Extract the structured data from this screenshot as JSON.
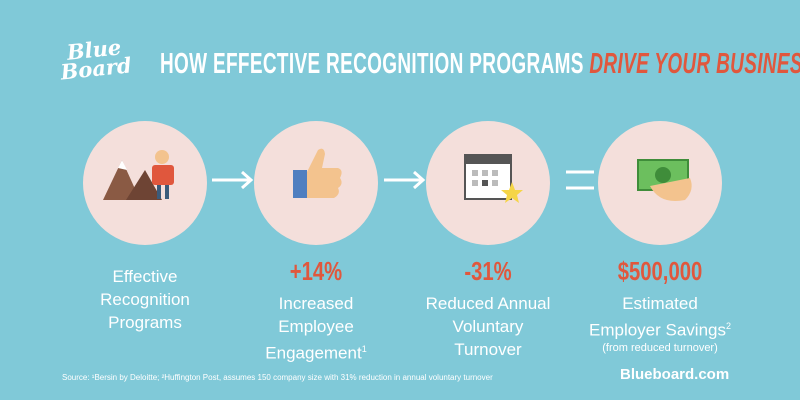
{
  "logo": [
    "Blue",
    "Board"
  ],
  "title": {
    "main": "HOW EFFECTIVE RECOGNITION PROGRAMS",
    "highlight": "DRIVE YOUR BUSINESS"
  },
  "steps": [
    {
      "label": [
        "Effective",
        "Recognition",
        "Programs"
      ]
    },
    {
      "stat": "+14%",
      "label": [
        "Increased",
        "Employee",
        "Engagement"
      ],
      "sup": "1"
    },
    {
      "stat": "-31%",
      "label": [
        "Reduced Annual",
        "Voluntary",
        "Turnover"
      ]
    },
    {
      "stat": "$500,000",
      "label": [
        "Estimated",
        "Employer Savings"
      ],
      "sup": "2",
      "note": "(from reduced turnover)"
    }
  ],
  "footer": {
    "source": "Source: ¹Bersin by Deloitte; ²Huffington Post, assumes 150 company size with 31% reduction in annual voluntary turnover",
    "site": "Blueboard.com"
  }
}
